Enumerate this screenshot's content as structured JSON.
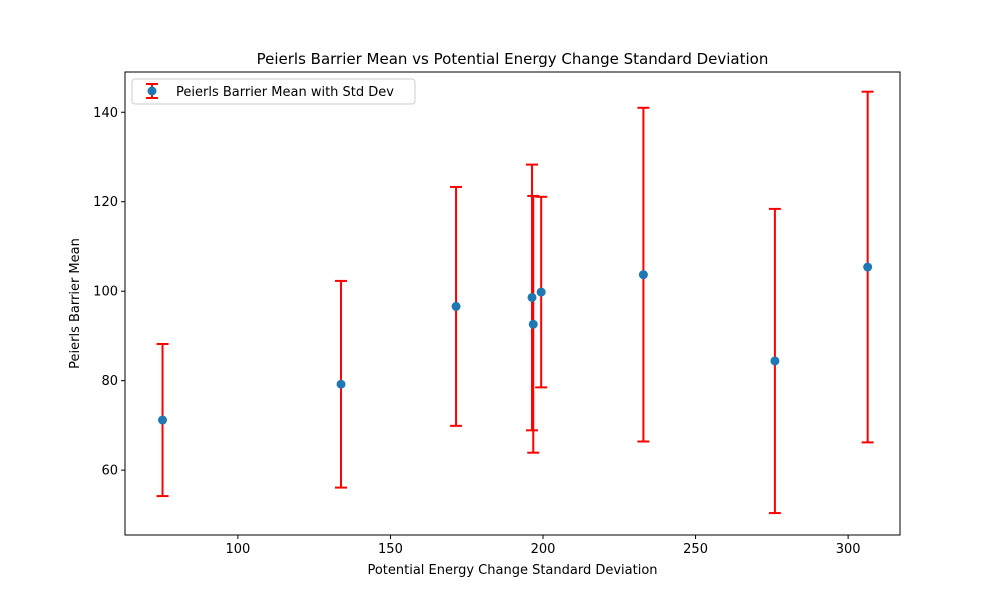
{
  "chart_data": {
    "type": "scatter",
    "title": "Peierls Barrier Mean vs Potential Energy Change Standard Deviation",
    "xlabel": "Potential Energy Change Standard Deviation",
    "ylabel": "Peierls Barrier Mean",
    "xlim": [
      63,
      317
    ],
    "ylim": [
      45.5,
      149
    ],
    "xticks": [
      100,
      150,
      200,
      250,
      300
    ],
    "yticks": [
      60,
      80,
      100,
      120,
      140
    ],
    "grid": false,
    "legend": {
      "placement": "upper-left",
      "entries": [
        "Peierls Barrier Mean with Std Dev"
      ]
    },
    "series": [
      {
        "name": "Peierls Barrier Mean with Std Dev",
        "marker_color": "#1f77b4",
        "errorbar_color": "#ff0000",
        "points": [
          {
            "x": 75.3,
            "y": 71.2,
            "err": 17.0
          },
          {
            "x": 133.8,
            "y": 79.2,
            "err": 23.1
          },
          {
            "x": 171.5,
            "y": 96.6,
            "err": 26.7
          },
          {
            "x": 196.4,
            "y": 98.6,
            "err": 29.7
          },
          {
            "x": 196.8,
            "y": 92.6,
            "err": 28.7
          },
          {
            "x": 199.4,
            "y": 99.8,
            "err": 21.3
          },
          {
            "x": 232.9,
            "y": 103.7,
            "err": 37.3
          },
          {
            "x": 276.0,
            "y": 84.4,
            "err": 34.0
          },
          {
            "x": 306.4,
            "y": 105.4,
            "err": 39.2
          }
        ]
      }
    ]
  }
}
